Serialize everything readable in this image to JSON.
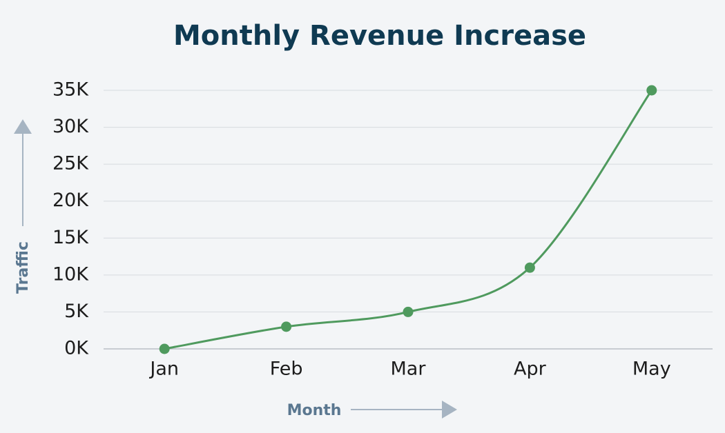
{
  "chart_data": {
    "type": "line",
    "title": "Monthly Revenue Increase",
    "x_label": "Month",
    "y_label": "Traffic",
    "categories": [
      "Jan",
      "Feb",
      "Mar",
      "Apr",
      "May"
    ],
    "values": [
      0,
      3000,
      5000,
      11000,
      35000
    ],
    "color": "#4f9a5e",
    "ylim": [
      0,
      35000
    ],
    "yticks": [
      {
        "value": 0,
        "label": "0K"
      },
      {
        "value": 5000,
        "label": "5K"
      },
      {
        "value": 10000,
        "label": "10K"
      },
      {
        "value": 15000,
        "label": "15K"
      },
      {
        "value": 20000,
        "label": "20K"
      },
      {
        "value": 25000,
        "label": "25K"
      },
      {
        "value": 30000,
        "label": "30K"
      },
      {
        "value": 35000,
        "label": "35K"
      }
    ],
    "grid": true,
    "smooth": true
  }
}
